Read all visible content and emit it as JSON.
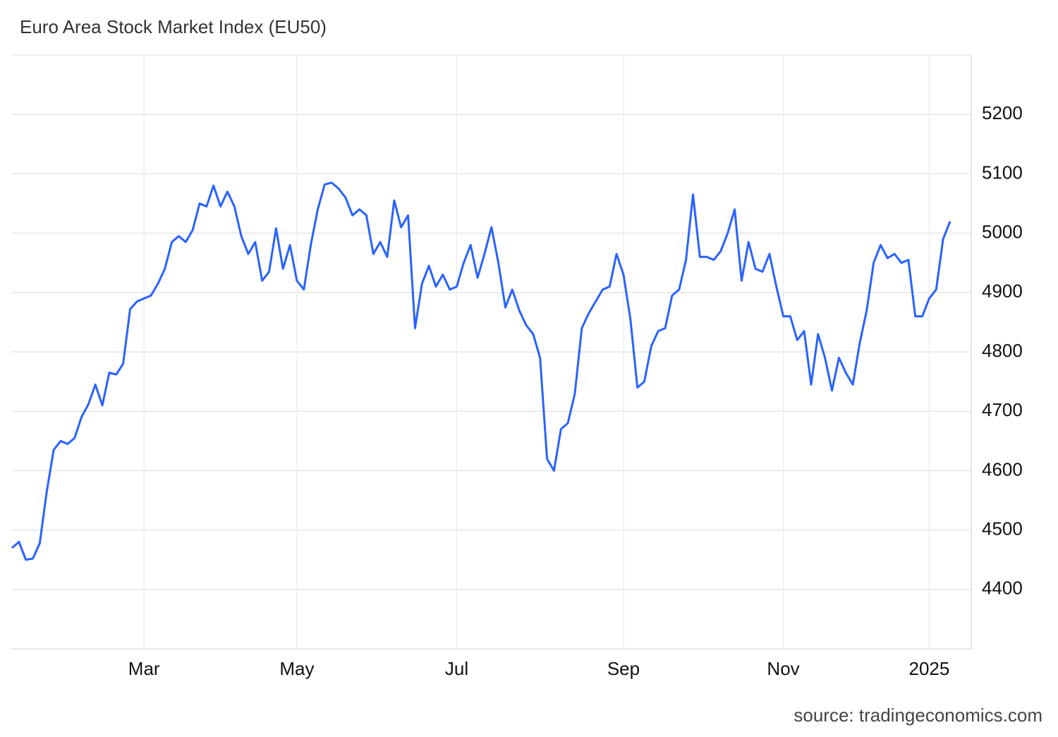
{
  "chart_data": {
    "type": "line",
    "title": "Euro Area Stock Market Index (EU50)",
    "source": "source: tradingeconomics.com",
    "categories": [
      null,
      null,
      null,
      null,
      null,
      null,
      null,
      null,
      null,
      null,
      null,
      null,
      null,
      null,
      null,
      null,
      null,
      null,
      null,
      "Mar",
      null,
      null,
      null,
      null,
      null,
      null,
      null,
      null,
      null,
      null,
      null,
      null,
      null,
      null,
      null,
      null,
      null,
      null,
      null,
      null,
      null,
      "May",
      null,
      null,
      null,
      null,
      null,
      null,
      null,
      null,
      null,
      null,
      null,
      null,
      null,
      null,
      null,
      null,
      null,
      null,
      null,
      null,
      null,
      null,
      "Jul",
      null,
      null,
      null,
      null,
      null,
      null,
      null,
      null,
      null,
      null,
      null,
      null,
      null,
      null,
      null,
      null,
      null,
      null,
      null,
      null,
      null,
      null,
      null,
      "Sep",
      null,
      null,
      null,
      null,
      null,
      null,
      null,
      null,
      null,
      null,
      null,
      null,
      null,
      null,
      null,
      null,
      null,
      null,
      null,
      null,
      null,
      null,
      "Nov",
      null,
      null,
      null,
      null,
      null,
      null,
      null,
      null,
      null,
      null,
      null,
      null,
      null,
      null,
      null,
      null,
      null,
      null,
      null,
      null,
      "2025",
      null,
      null,
      null
    ],
    "series": [
      {
        "name": "EU50",
        "color": "#2962ff",
        "values": [
          4470,
          4480,
          4450,
          4452,
          4478,
          4565,
          4635,
          4650,
          4645,
          4655,
          4690,
          4712,
          4745,
          4710,
          4765,
          4762,
          4780,
          4872,
          4885,
          4890,
          4895,
          4915,
          4940,
          4985,
          4995,
          4985,
          5005,
          5050,
          5045,
          5080,
          5045,
          5070,
          5045,
          4995,
          4965,
          4985,
          4920,
          4935,
          5008,
          4940,
          4980,
          4920,
          4905,
          4980,
          5040,
          5082,
          5085,
          5075,
          5060,
          5030,
          5040,
          5030,
          4965,
          4985,
          4960,
          5055,
          5010,
          5030,
          4840,
          4915,
          4945,
          4910,
          4930,
          4905,
          4910,
          4950,
          4980,
          4925,
          4965,
          5010,
          4950,
          4875,
          4905,
          4870,
          4845,
          4830,
          4790,
          4620,
          4600,
          4670,
          4680,
          4730,
          4840,
          4865,
          4885,
          4905,
          4910,
          4965,
          4930,
          4855,
          4740,
          4750,
          4810,
          4835,
          4840,
          4895,
          4905,
          4955,
          5065,
          4960,
          4960,
          4955,
          4970,
          5000,
          5040,
          4920,
          4985,
          4940,
          4935,
          4965,
          4910,
          4860,
          4860,
          4820,
          4835,
          4745,
          4830,
          4790,
          4735,
          4790,
          4765,
          4745,
          4815,
          4870,
          4950,
          4980,
          4958,
          4965,
          4950,
          4955,
          4860,
          4860,
          4890,
          4905,
          4990,
          5020
        ]
      }
    ],
    "ylim": [
      4300,
      5300
    ],
    "yticks": [
      4400,
      4500,
      4600,
      4700,
      4800,
      4900,
      5000,
      5100,
      5200
    ],
    "grid": true
  }
}
